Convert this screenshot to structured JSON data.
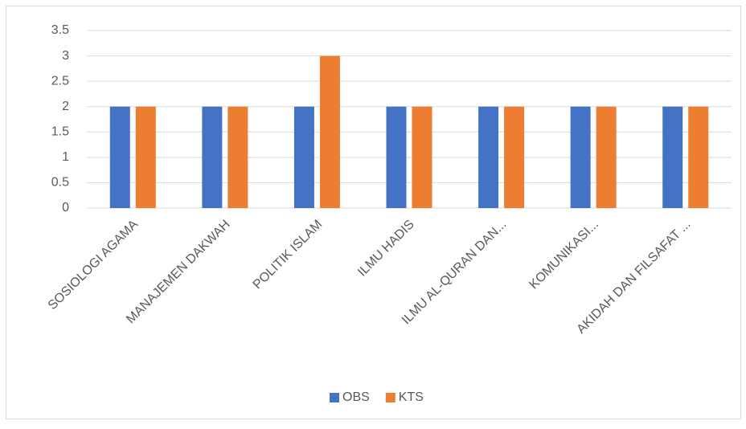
{
  "chart_data": {
    "type": "bar",
    "categories": [
      "SOSIOLOGI AGAMA",
      "MANAJEMEN DAKWAH",
      "POLITIK ISLAM",
      "ILMU HADIS",
      "ILMU AL-QURAN DAN...",
      "KOMUNIKASI...",
      "AKIDAH DAN FILSAFAT ..."
    ],
    "series": [
      {
        "name": "OBS",
        "color": "#4472c4",
        "values": [
          2,
          2,
          2,
          2,
          2,
          2,
          2
        ]
      },
      {
        "name": "KTS",
        "color": "#ed7d31",
        "values": [
          2,
          2,
          3,
          2,
          2,
          2,
          2
        ]
      }
    ],
    "ylim": [
      0,
      3.5
    ],
    "yticks": [
      0,
      0.5,
      1,
      1.5,
      2,
      2.5,
      3,
      3.5
    ],
    "grid": true,
    "legend": "bottom"
  }
}
